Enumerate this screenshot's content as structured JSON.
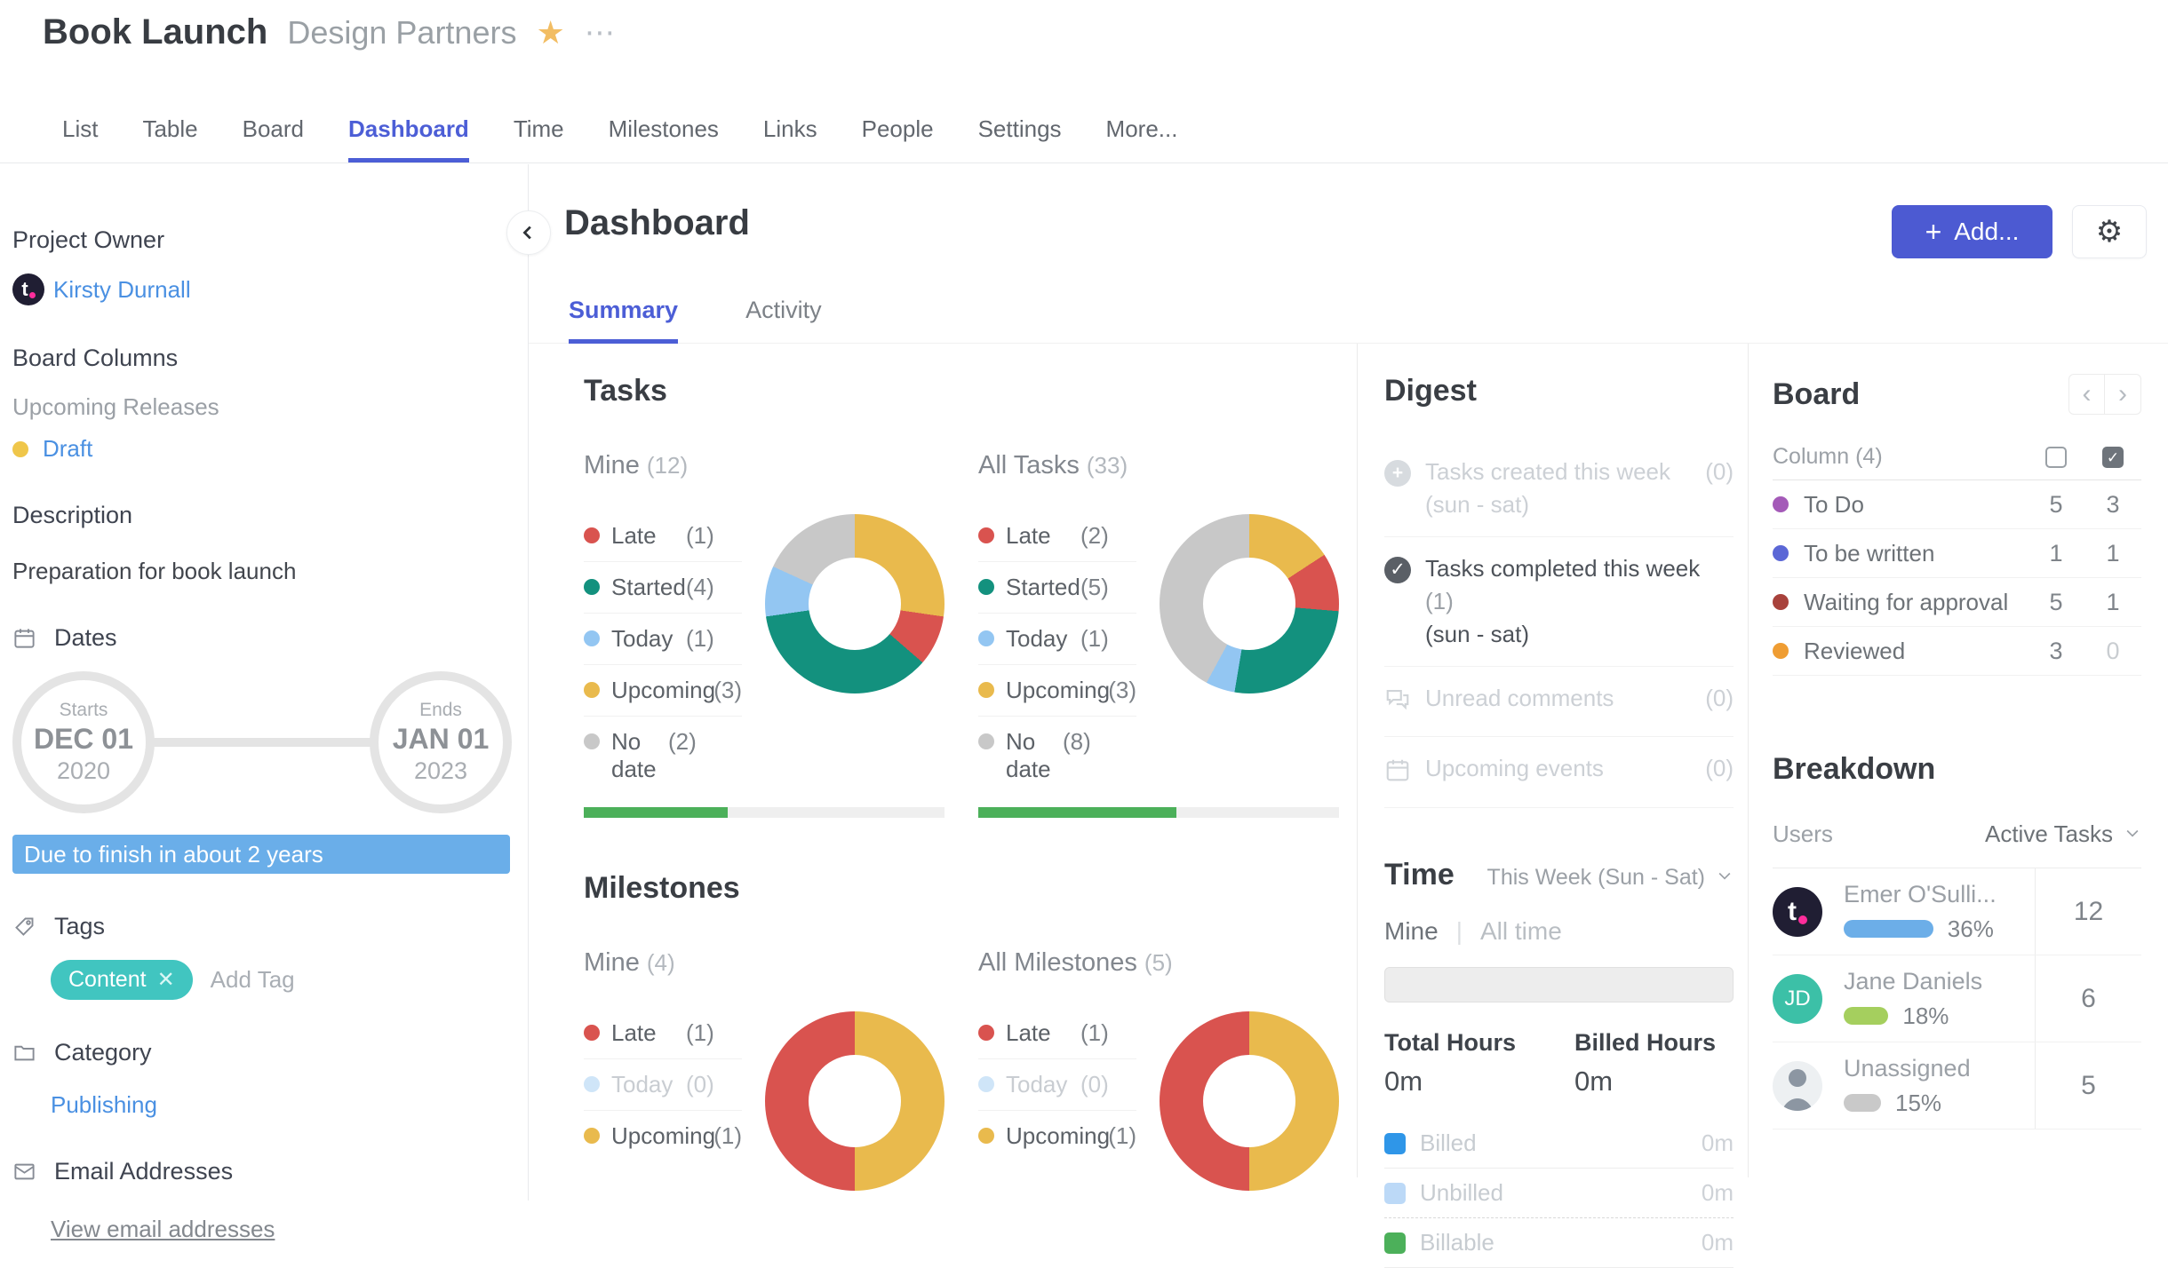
{
  "header": {
    "title": "Book Launch",
    "subtitle": "Design Partners"
  },
  "nav": {
    "tabs": [
      "List",
      "Table",
      "Board",
      "Dashboard",
      "Time",
      "Milestones",
      "Links",
      "People",
      "Settings",
      "More..."
    ],
    "active_tab": "Dashboard"
  },
  "sidebar": {
    "project_owner_label": "Project Owner",
    "project_owner_name": "Kirsty Durnall",
    "board_columns_label": "Board Columns",
    "board_columns_group": "Upcoming Releases",
    "board_columns_item": "Draft",
    "board_columns_item_color": "#efc64a",
    "description_label": "Description",
    "description_text": "Preparation for book launch",
    "dates_label": "Dates",
    "date_start_caption": "Starts",
    "date_start_month_day": "DEC 01",
    "date_start_year": "2020",
    "date_end_caption": "Ends",
    "date_end_month_day": "JAN 01",
    "date_end_year": "2023",
    "due_banner": "Due to finish in about 2 years",
    "tags_label": "Tags",
    "tag_name": "Content",
    "add_tag_label": "Add Tag",
    "category_label": "Category",
    "category_value": "Publishing",
    "email_label": "Email Addresses",
    "email_link": "View email addresses"
  },
  "toolbar": {
    "page_title": "Dashboard",
    "add_label": "Add..."
  },
  "tabs": {
    "summary": "Summary",
    "activity": "Activity"
  },
  "tasks": {
    "title": "Tasks",
    "mine": {
      "label": "Mine",
      "count": "(12)",
      "progress_pct": 40,
      "legend": [
        {
          "label": "Late",
          "count": "(1)",
          "color": "#d9534f"
        },
        {
          "label": "Started",
          "count": "(4)",
          "color": "#13917e"
        },
        {
          "label": "Today",
          "count": "(1)",
          "color": "#93c6f2"
        },
        {
          "label": "Upcoming",
          "count": "(3)",
          "color": "#e9ba4d"
        },
        {
          "label": "No date",
          "count": "(2)",
          "color": "#c8c8c8",
          "wrap": true
        }
      ],
      "slices": [
        {
          "label": "Upcoming",
          "color": "#e9ba4d",
          "value": 3
        },
        {
          "label": "Late",
          "color": "#d9534f",
          "value": 1
        },
        {
          "label": "Started",
          "color": "#13917e",
          "value": 4
        },
        {
          "label": "Today",
          "color": "#93c6f2",
          "value": 1
        },
        {
          "label": "No date",
          "color": "#c8c8c8",
          "value": 2
        }
      ]
    },
    "all": {
      "label": "All Tasks",
      "count": "(33)",
      "progress_pct": 55,
      "legend": [
        {
          "label": "Late",
          "count": "(2)",
          "color": "#d9534f"
        },
        {
          "label": "Started",
          "count": "(5)",
          "color": "#13917e"
        },
        {
          "label": "Today",
          "count": "(1)",
          "color": "#93c6f2"
        },
        {
          "label": "Upcoming",
          "count": "(3)",
          "color": "#e9ba4d"
        },
        {
          "label": "No date",
          "count": "(8)",
          "color": "#c8c8c8",
          "wrap": true
        }
      ],
      "slices": [
        {
          "label": "Upcoming",
          "color": "#e9ba4d",
          "value": 3
        },
        {
          "label": "Late",
          "color": "#d9534f",
          "value": 2
        },
        {
          "label": "Started",
          "color": "#13917e",
          "value": 5
        },
        {
          "label": "Today",
          "color": "#93c6f2",
          "value": 1
        },
        {
          "label": "No date",
          "color": "#c8c8c8",
          "value": 8
        }
      ]
    }
  },
  "milestones": {
    "title": "Milestones",
    "mine": {
      "label": "Mine",
      "count": "(4)",
      "legend": [
        {
          "label": "Late",
          "count": "(1)",
          "color": "#d9534f"
        },
        {
          "label": "Today",
          "count": "(0)",
          "color": "#cfe5f8",
          "muted": true
        },
        {
          "label": "Upcoming",
          "count": "(1)",
          "color": "#e9ba4d"
        }
      ],
      "slices": [
        {
          "label": "Upcoming",
          "color": "#e9ba4d",
          "value": 1
        },
        {
          "label": "Late",
          "color": "#d9534f",
          "value": 1
        }
      ]
    },
    "all": {
      "label": "All Milestones",
      "count": "(5)",
      "legend": [
        {
          "label": "Late",
          "count": "(1)",
          "color": "#d9534f"
        },
        {
          "label": "Today",
          "count": "(0)",
          "color": "#cfe5f8",
          "muted": true
        },
        {
          "label": "Upcoming",
          "count": "(1)",
          "color": "#e9ba4d"
        }
      ],
      "slices": [
        {
          "label": "Upcoming",
          "color": "#e9ba4d",
          "value": 1
        },
        {
          "label": "Late",
          "color": "#d9534f",
          "value": 1
        }
      ]
    }
  },
  "digest": {
    "title": "Digest",
    "items": [
      {
        "icon": "plus-circle",
        "line1": "Tasks created this week",
        "line2": "(sun - sat)",
        "count": "(0)",
        "count_placement": "right",
        "muted": true
      },
      {
        "icon": "check-circle",
        "line1": "Tasks completed this week",
        "line2": "(sun - sat)",
        "count": "(1)",
        "count_placement": "inline",
        "muted": false
      },
      {
        "icon": "comments",
        "line1": "Unread comments",
        "line2": "",
        "count": "(0)",
        "count_placement": "right",
        "muted": true
      },
      {
        "icon": "calendar",
        "line1": "Upcoming events",
        "line2": "",
        "count": "(0)",
        "count_placement": "right",
        "muted": true
      }
    ]
  },
  "time": {
    "title": "Time",
    "range": "This Week (Sun - Sat)",
    "mode_mine": "Mine",
    "mode_all": "All time",
    "total_hours_label": "Total Hours",
    "total_hours_value": "0m",
    "billed_hours_label": "Billed Hours",
    "billed_hours_value": "0m",
    "rows": [
      {
        "label": "Billed",
        "value": "0m",
        "color": "#2f96e8",
        "divider": "solid"
      },
      {
        "label": "Unbilled",
        "value": "0m",
        "color": "#bcd9f7",
        "divider": "dashed"
      },
      {
        "label": "Billable",
        "value": "0m",
        "color": "#4cb05a",
        "divider": "solid"
      }
    ]
  },
  "board": {
    "title": "Board",
    "column_header": "Column (4)",
    "rows": [
      {
        "label": "To Do",
        "color": "#a45ab8",
        "active": "5",
        "done": "3"
      },
      {
        "label": "To be written",
        "color": "#5b67d6",
        "active": "1",
        "done": "1"
      },
      {
        "label": "Waiting for approval",
        "color": "#a8423c",
        "active": "5",
        "done": "1"
      },
      {
        "label": "Reviewed",
        "color": "#ef9d33",
        "active": "3",
        "done": "0",
        "done_muted": true
      }
    ]
  },
  "breakdown": {
    "title": "Breakdown",
    "users_label": "Users",
    "filter_label": "Active Tasks",
    "rows": [
      {
        "name": "Emer O'Sulli...",
        "pct": "36%",
        "pct_value": 36,
        "bar_color": "#6caee8",
        "count": "12",
        "avatar": "teamwork"
      },
      {
        "name": "Jane Daniels",
        "pct": "18%",
        "pct_value": 18,
        "bar_color": "#a5cf5e",
        "count": "6",
        "avatar": "initials",
        "initials": "JD",
        "avatar_bg": "#3cc0a7"
      },
      {
        "name": "Unassigned",
        "pct": "15%",
        "pct_value": 15,
        "bar_color": "#c9c9c9",
        "count": "5",
        "avatar": "silhouette"
      }
    ]
  },
  "chart_data": [
    {
      "type": "pie",
      "title": "Tasks — Mine (12)",
      "labels": [
        "Late",
        "Started",
        "Today",
        "Upcoming",
        "No date"
      ],
      "values": [
        1,
        4,
        1,
        3,
        2
      ],
      "colors": [
        "#d9534f",
        "#13917e",
        "#93c6f2",
        "#e9ba4d",
        "#c8c8c8"
      ],
      "progress_pct": 40
    },
    {
      "type": "pie",
      "title": "Tasks — All Tasks (33)",
      "labels": [
        "Late",
        "Started",
        "Today",
        "Upcoming",
        "No date"
      ],
      "values": [
        2,
        5,
        1,
        3,
        8
      ],
      "colors": [
        "#d9534f",
        "#13917e",
        "#93c6f2",
        "#e9ba4d",
        "#c8c8c8"
      ],
      "progress_pct": 55
    },
    {
      "type": "pie",
      "title": "Milestones — Mine (4)",
      "labels": [
        "Late",
        "Today",
        "Upcoming"
      ],
      "values": [
        1,
        0,
        1
      ],
      "colors": [
        "#d9534f",
        "#cfe5f8",
        "#e9ba4d"
      ]
    },
    {
      "type": "pie",
      "title": "Milestones — All Milestones (5)",
      "labels": [
        "Late",
        "Today",
        "Upcoming"
      ],
      "values": [
        1,
        0,
        1
      ],
      "colors": [
        "#d9534f",
        "#cfe5f8",
        "#e9ba4d"
      ]
    }
  ]
}
